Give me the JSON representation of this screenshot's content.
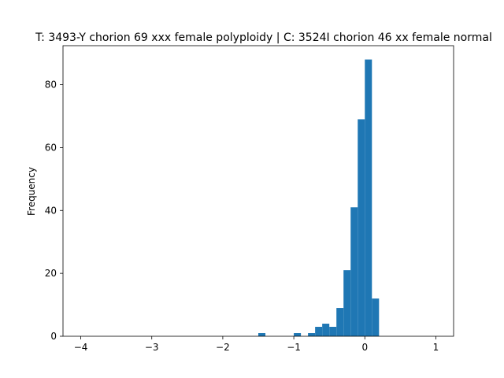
{
  "chart_data": {
    "type": "bar",
    "title": "T: 3493-Y chorion 69 xxx female polyploidy | C: 3524I chorion 46 xx female normal",
    "xlabel": "",
    "ylabel": "Frequency",
    "xlim": [
      -4.25,
      1.25
    ],
    "ylim": [
      0,
      92.4
    ],
    "xticks": [
      -4,
      -3,
      -2,
      -1,
      0,
      1
    ],
    "xtick_labels": [
      "−4",
      "−3",
      "−2",
      "−1",
      "0",
      "1"
    ],
    "yticks": [
      0,
      20,
      40,
      60,
      80
    ],
    "ytick_labels": [
      "0",
      "20",
      "40",
      "60",
      "80"
    ],
    "grid": false,
    "bar_color": "#1f77b4",
    "bins": [
      {
        "x0": -1.5,
        "x1": -1.4,
        "count": 1
      },
      {
        "x0": -1.0,
        "x1": -0.9,
        "count": 1
      },
      {
        "x0": -0.8,
        "x1": -0.7,
        "count": 1
      },
      {
        "x0": -0.7,
        "x1": -0.6,
        "count": 3
      },
      {
        "x0": -0.6,
        "x1": -0.5,
        "count": 4
      },
      {
        "x0": -0.5,
        "x1": -0.4,
        "count": 3
      },
      {
        "x0": -0.4,
        "x1": -0.3,
        "count": 9
      },
      {
        "x0": -0.3,
        "x1": -0.2,
        "count": 21
      },
      {
        "x0": -0.2,
        "x1": -0.1,
        "count": 41
      },
      {
        "x0": -0.1,
        "x1": 0.0,
        "count": 69
      },
      {
        "x0": 0.0,
        "x1": 0.1,
        "count": 88
      },
      {
        "x0": 0.1,
        "x1": 0.2,
        "count": 12
      }
    ]
  }
}
